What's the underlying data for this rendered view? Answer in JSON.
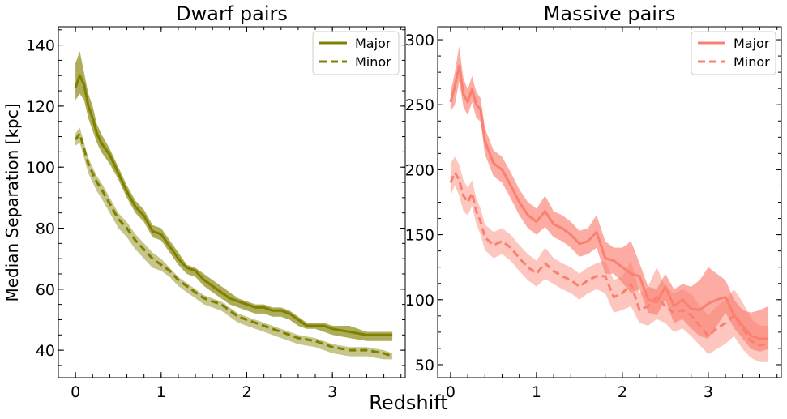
{
  "figure": {
    "xlabel": "Redshift"
  },
  "chart_data": [
    {
      "type": "line",
      "title": "Dwarf pairs",
      "xlabel": "",
      "ylabel": "Median Separation [kpc]",
      "xlim": [
        -0.2,
        3.85
      ],
      "ylim": [
        31,
        146
      ],
      "xticks": [
        0,
        1,
        2,
        3
      ],
      "yticks": [
        40,
        60,
        80,
        100,
        120,
        140
      ],
      "grid": false,
      "legend": "top-right",
      "color": "#808000",
      "series": [
        {
          "name": "Major",
          "style": "solid",
          "x": [
            0.0,
            0.05,
            0.1,
            0.15,
            0.2,
            0.25,
            0.3,
            0.4,
            0.5,
            0.6,
            0.7,
            0.8,
            0.9,
            1.0,
            1.1,
            1.2,
            1.3,
            1.4,
            1.5,
            1.6,
            1.7,
            1.8,
            1.9,
            2.0,
            2.1,
            2.2,
            2.3,
            2.4,
            2.5,
            2.6,
            2.7,
            2.8,
            2.9,
            3.0,
            3.2,
            3.4,
            3.6,
            3.7
          ],
          "y": [
            126,
            130,
            127,
            120,
            116,
            111,
            108,
            104,
            98,
            92,
            87,
            84,
            79,
            78,
            74,
            70,
            67,
            66,
            63,
            61,
            59,
            57,
            56,
            55,
            54,
            54,
            53,
            53,
            52,
            50,
            48,
            48,
            48,
            47,
            46,
            45,
            45,
            45
          ],
          "upper": [
            134,
            138,
            131,
            124,
            120,
            114,
            111,
            106,
            100,
            94,
            89,
            86,
            81,
            80,
            76,
            72,
            68,
            67,
            65,
            63,
            61,
            59,
            57,
            56,
            55,
            55,
            54,
            54,
            53,
            51,
            49,
            49,
            49,
            48,
            48,
            46,
            46,
            46
          ],
          "lower": [
            122,
            124,
            122,
            116,
            112,
            108,
            105,
            101,
            96,
            90,
            85,
            82,
            77,
            76,
            72,
            68,
            65,
            64,
            61,
            59,
            57,
            55,
            54,
            53,
            52,
            52,
            51,
            51,
            50,
            48,
            47,
            47,
            46,
            45,
            44,
            43,
            43,
            43
          ]
        },
        {
          "name": "Minor",
          "style": "dashed",
          "x": [
            0.0,
            0.05,
            0.1,
            0.15,
            0.2,
            0.25,
            0.3,
            0.4,
            0.5,
            0.6,
            0.7,
            0.8,
            0.9,
            1.0,
            1.1,
            1.2,
            1.3,
            1.4,
            1.5,
            1.6,
            1.7,
            1.8,
            1.9,
            2.0,
            2.2,
            2.4,
            2.6,
            2.8,
            3.0,
            3.2,
            3.4,
            3.6,
            3.7
          ],
          "y": [
            109,
            111,
            106,
            101,
            98,
            95,
            93,
            88,
            83,
            80,
            76,
            73,
            70,
            68,
            66,
            63,
            61,
            59,
            57,
            56,
            55,
            53,
            51,
            50,
            48,
            46,
            44,
            43,
            41,
            40,
            40,
            39,
            38
          ],
          "upper": [
            111,
            113,
            108,
            103,
            100,
            97,
            95,
            90,
            85,
            82,
            78,
            75,
            72,
            70,
            67,
            64,
            62,
            60,
            58,
            57,
            56,
            54,
            52,
            51,
            49,
            47,
            45,
            44,
            42,
            41,
            41,
            40,
            39
          ],
          "lower": [
            107,
            108,
            103,
            98,
            95,
            92,
            90,
            85,
            80,
            77,
            73,
            70,
            67,
            66,
            64,
            61,
            59,
            57,
            55,
            54,
            53,
            51,
            49,
            48,
            46,
            44,
            42,
            41,
            39,
            38,
            38,
            37,
            37
          ]
        }
      ]
    },
    {
      "type": "line",
      "title": "Massive pairs",
      "xlabel": "",
      "ylabel": "",
      "xlim": [
        -0.15,
        3.85
      ],
      "ylim": [
        40,
        310
      ],
      "xticks": [
        0,
        1,
        2,
        3
      ],
      "yticks": [
        50,
        100,
        150,
        200,
        250,
        300
      ],
      "grid": false,
      "legend": "top-right",
      "color": "#fa8072",
      "series": [
        {
          "name": "Major",
          "style": "solid",
          "x": [
            0.0,
            0.05,
            0.1,
            0.15,
            0.2,
            0.25,
            0.3,
            0.35,
            0.4,
            0.5,
            0.6,
            0.7,
            0.8,
            0.9,
            1.0,
            1.1,
            1.2,
            1.3,
            1.4,
            1.5,
            1.6,
            1.7,
            1.8,
            1.9,
            2.0,
            2.1,
            2.2,
            2.3,
            2.4,
            2.5,
            2.6,
            2.7,
            2.8,
            2.9,
            3.0,
            3.1,
            3.2,
            3.3,
            3.4,
            3.5,
            3.6,
            3.7
          ],
          "y": [
            252,
            264,
            280,
            258,
            252,
            262,
            250,
            246,
            222,
            205,
            200,
            188,
            175,
            165,
            160,
            168,
            158,
            155,
            150,
            143,
            145,
            152,
            132,
            130,
            125,
            120,
            118,
            100,
            98,
            110,
            95,
            100,
            93,
            92,
            97,
            100,
            102,
            88,
            80,
            72,
            70,
            70
          ],
          "upper": [
            260,
            275,
            295,
            270,
            262,
            272,
            260,
            255,
            232,
            215,
            210,
            198,
            185,
            175,
            170,
            180,
            168,
            165,
            160,
            153,
            155,
            165,
            145,
            140,
            140,
            145,
            128,
            110,
            108,
            120,
            108,
            112,
            110,
            115,
            125,
            120,
            115,
            100,
            92,
            90,
            92,
            95
          ],
          "lower": [
            245,
            250,
            268,
            248,
            242,
            252,
            240,
            237,
            212,
            195,
            190,
            178,
            165,
            155,
            150,
            156,
            148,
            145,
            140,
            133,
            135,
            140,
            120,
            120,
            113,
            105,
            108,
            90,
            88,
            100,
            82,
            85,
            78,
            72,
            70,
            80,
            90,
            78,
            70,
            62,
            60,
            62
          ]
        },
        {
          "name": "Minor",
          "style": "dashed",
          "x": [
            0.0,
            0.05,
            0.1,
            0.15,
            0.2,
            0.25,
            0.3,
            0.35,
            0.4,
            0.5,
            0.6,
            0.7,
            0.8,
            0.9,
            1.0,
            1.1,
            1.2,
            1.3,
            1.4,
            1.5,
            1.6,
            1.7,
            1.8,
            1.9,
            2.0,
            2.1,
            2.2,
            2.3,
            2.4,
            2.5,
            2.6,
            2.7,
            2.8,
            2.9,
            3.0,
            3.1,
            3.2,
            3.3,
            3.4,
            3.5,
            3.6,
            3.7
          ],
          "y": [
            190,
            198,
            192,
            180,
            175,
            182,
            168,
            160,
            148,
            142,
            145,
            140,
            132,
            125,
            120,
            128,
            122,
            118,
            115,
            110,
            115,
            118,
            118,
            102,
            105,
            112,
            92,
            95,
            102,
            95,
            90,
            92,
            88,
            80,
            72,
            78,
            82,
            88,
            78,
            68,
            65,
            66
          ],
          "upper": [
            205,
            210,
            204,
            192,
            186,
            192,
            178,
            170,
            158,
            152,
            155,
            150,
            142,
            135,
            130,
            140,
            132,
            128,
            125,
            120,
            125,
            128,
            130,
            115,
            118,
            130,
            105,
            110,
            125,
            110,
            105,
            108,
            105,
            95,
            88,
            95,
            100,
            108,
            98,
            85,
            80,
            80
          ],
          "lower": [
            180,
            188,
            180,
            168,
            165,
            172,
            158,
            150,
            138,
            132,
            135,
            130,
            122,
            115,
            110,
            116,
            112,
            108,
            105,
            100,
            105,
            108,
            105,
            90,
            92,
            95,
            82,
            80,
            85,
            82,
            75,
            78,
            72,
            65,
            58,
            62,
            66,
            72,
            62,
            55,
            52,
            52
          ]
        }
      ]
    }
  ]
}
